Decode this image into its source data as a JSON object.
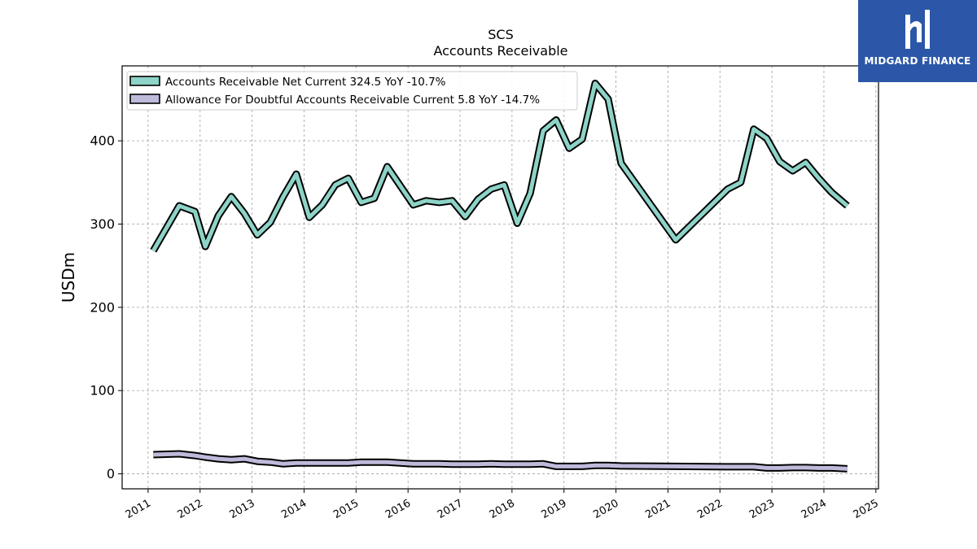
{
  "chart_data": {
    "type": "line",
    "title": "SCS",
    "subtitle": "Accounts Receivable",
    "ylabel": "USDm",
    "xlim": [
      2010.5,
      2025.05
    ],
    "ylim": [
      -18,
      490
    ],
    "yticks": [
      0,
      100,
      200,
      300,
      400
    ],
    "xticks": [
      2011,
      2012,
      2013,
      2014,
      2015,
      2016,
      2017,
      2018,
      2019,
      2020,
      2021,
      2022,
      2023,
      2024,
      2025
    ],
    "grid": true,
    "legend_position": "top-left",
    "series": [
      {
        "name": "Accounts Receivable Net Current",
        "legend": "Accounts Receivable Net Current  324.5 YoY -10.7%",
        "color": "#8dd3c7",
        "x": [
          2011.1,
          2011.6,
          2011.9,
          2012.1,
          2012.35,
          2012.6,
          2012.85,
          2013.1,
          2013.35,
          2013.6,
          2013.85,
          2014.1,
          2014.35,
          2014.6,
          2014.85,
          2015.1,
          2015.35,
          2015.6,
          2015.85,
          2016.1,
          2016.35,
          2016.6,
          2016.85,
          2017.1,
          2017.35,
          2017.6,
          2017.85,
          2018.1,
          2018.35,
          2018.6,
          2018.85,
          2019.1,
          2019.35,
          2019.6,
          2019.85,
          2020.1,
          2021.15,
          2022.15,
          2022.4,
          2022.65,
          2022.9,
          2023.15,
          2023.4,
          2023.65,
          2023.9,
          2024.15,
          2024.45
        ],
        "y": [
          268,
          322,
          315,
          273,
          310,
          333,
          313,
          287,
          302,
          333,
          360,
          308,
          323,
          347,
          355,
          326,
          331,
          369,
          346,
          323,
          328,
          326,
          328,
          309,
          330,
          342,
          347,
          301,
          337,
          412,
          425,
          391,
          402,
          469,
          450,
          373,
          281,
          342,
          350,
          414,
          403,
          375,
          364,
          374,
          355,
          338,
          322
        ]
      },
      {
        "name": "Allowance For Doubtful Accounts Receivable Current",
        "legend": "Allowance For Doubtful Accounts Receivable Current  5.8 YoY -14.7%",
        "color": "#bebada",
        "x": [
          2011.1,
          2011.6,
          2011.9,
          2012.1,
          2012.35,
          2012.6,
          2012.85,
          2013.1,
          2013.35,
          2013.6,
          2013.85,
          2014.1,
          2014.35,
          2014.6,
          2014.85,
          2015.1,
          2015.35,
          2015.6,
          2015.85,
          2016.1,
          2016.35,
          2016.6,
          2016.85,
          2017.1,
          2017.35,
          2017.6,
          2017.85,
          2018.1,
          2018.35,
          2018.6,
          2018.85,
          2019.1,
          2019.35,
          2019.6,
          2019.85,
          2020.1,
          2021.15,
          2022.15,
          2022.4,
          2022.65,
          2022.9,
          2023.15,
          2023.4,
          2023.65,
          2023.9,
          2024.15,
          2024.45
        ],
        "y": [
          23,
          24,
          22,
          20,
          18,
          17,
          18,
          15,
          14,
          12,
          13,
          13,
          13,
          13,
          13,
          14,
          14,
          14,
          13,
          12,
          12,
          12,
          11.5,
          11.5,
          11.5,
          12,
          11.5,
          11.5,
          11.5,
          12,
          9,
          9,
          9,
          10,
          10,
          9.5,
          9,
          8.5,
          8.5,
          8.5,
          7,
          7,
          7.5,
          7.5,
          7,
          7,
          6
        ]
      }
    ]
  },
  "branding": {
    "name": "MIDGARD FINANCE",
    "background_color": "#2c57a8",
    "icon": "midgard-logo-icon"
  }
}
